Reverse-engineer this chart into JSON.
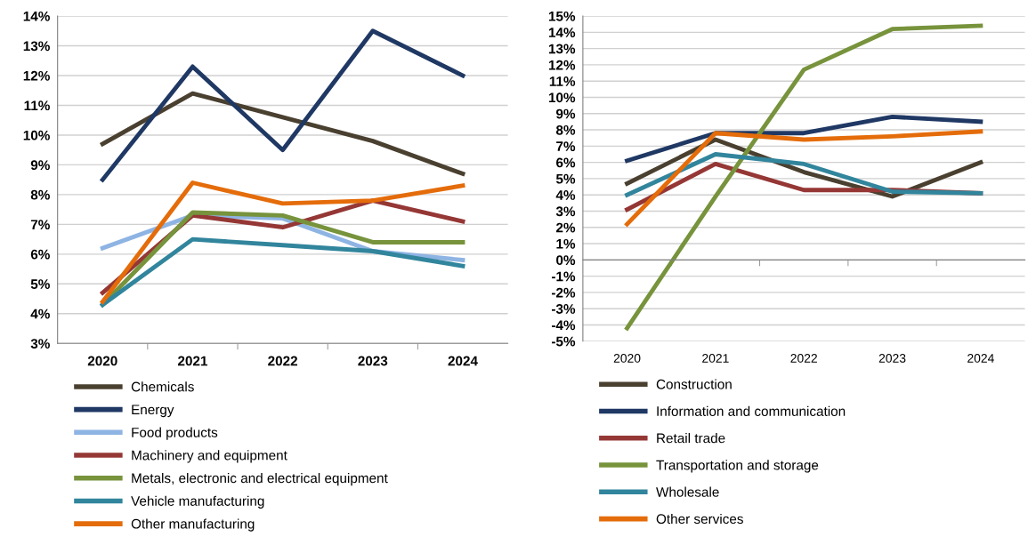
{
  "chart_data": [
    {
      "type": "line",
      "categories": [
        "2020",
        "2021",
        "2022",
        "2023",
        "2024"
      ],
      "ylim": [
        3,
        14
      ],
      "yticks": [
        {
          "value": 3,
          "label": "3%"
        },
        {
          "value": 4,
          "label": "4%"
        },
        {
          "value": 5,
          "label": "5%"
        },
        {
          "value": 6,
          "label": "6%"
        },
        {
          "value": 7,
          "label": "7%"
        },
        {
          "value": 8,
          "label": "8%"
        },
        {
          "value": 9,
          "label": "9%"
        },
        {
          "value": 10,
          "label": "10%"
        },
        {
          "value": 11,
          "label": "11%"
        },
        {
          "value": 12,
          "label": "12%"
        },
        {
          "value": 13,
          "label": "13%"
        },
        {
          "value": 14,
          "label": "14%"
        }
      ],
      "grid": "y",
      "legend": "bottom",
      "series": [
        {
          "name": "Chemicals",
          "color": "#4a4030",
          "values": [
            9.7,
            11.4,
            10.6,
            9.8,
            8.7
          ]
        },
        {
          "name": "Energy",
          "color": "#1f3864",
          "values": [
            8.5,
            12.3,
            9.5,
            13.5,
            12.0
          ]
        },
        {
          "name": "Food products",
          "color": "#8eb4e3",
          "values": [
            6.2,
            7.3,
            7.2,
            6.1,
            5.8
          ]
        },
        {
          "name": "Machinery and equipment",
          "color": "#953735",
          "values": [
            4.7,
            7.3,
            6.9,
            7.8,
            7.1
          ]
        },
        {
          "name": "Metals, electronic and electrical equipment",
          "color": "#77933c",
          "values": [
            4.3,
            7.4,
            7.3,
            6.4,
            6.4
          ]
        },
        {
          "name": "Vehicle manufacturing",
          "color": "#31859c",
          "values": [
            4.3,
            6.5,
            6.3,
            6.1,
            5.6
          ]
        },
        {
          "name": "Other manufacturing",
          "color": "#e46c0a",
          "values": [
            4.4,
            8.4,
            7.7,
            7.8,
            8.3
          ]
        }
      ]
    },
    {
      "type": "line",
      "categories": [
        "2020",
        "2021",
        "2022",
        "2023",
        "2024"
      ],
      "ylim": [
        -5,
        15
      ],
      "yticks": [
        {
          "value": -5,
          "label": "-5%"
        },
        {
          "value": -4,
          "label": "-4%"
        },
        {
          "value": -3,
          "label": "-3%"
        },
        {
          "value": -2,
          "label": "-2%"
        },
        {
          "value": -1,
          "label": "-1%"
        },
        {
          "value": 0,
          "label": "0%"
        },
        {
          "value": 1,
          "label": "1%"
        },
        {
          "value": 2,
          "label": "2%"
        },
        {
          "value": 3,
          "label": "3%"
        },
        {
          "value": 4,
          "label": "4%"
        },
        {
          "value": 5,
          "label": "5%"
        },
        {
          "value": 6,
          "label": "6%"
        },
        {
          "value": 7,
          "label": "7%"
        },
        {
          "value": 8,
          "label": "8%"
        },
        {
          "value": 9,
          "label": "9%"
        },
        {
          "value": 10,
          "label": "10%"
        },
        {
          "value": 11,
          "label": "11%"
        },
        {
          "value": 12,
          "label": "12%"
        },
        {
          "value": 13,
          "label": "13%"
        },
        {
          "value": 14,
          "label": "14%"
        },
        {
          "value": 15,
          "label": "15%"
        }
      ],
      "grid": "y",
      "legend": "bottom",
      "series": [
        {
          "name": "Construction",
          "color": "#4a4030",
          "values": [
            4.7,
            7.4,
            5.4,
            3.9,
            6.0
          ]
        },
        {
          "name": "Information and communication",
          "color": "#1f3864",
          "values": [
            6.1,
            7.8,
            7.8,
            8.8,
            8.5
          ]
        },
        {
          "name": "Retail trade",
          "color": "#953735",
          "values": [
            3.1,
            5.9,
            4.3,
            4.3,
            4.1
          ]
        },
        {
          "name": "Transportation and storage",
          "color": "#77933c",
          "values": [
            -4.2,
            3.9,
            11.7,
            14.2,
            14.4
          ]
        },
        {
          "name": "Wholesale",
          "color": "#31859c",
          "values": [
            4.0,
            6.5,
            5.9,
            4.2,
            4.1
          ]
        },
        {
          "name": "Other services",
          "color": "#e46c0a",
          "values": [
            2.2,
            7.8,
            7.4,
            7.6,
            7.9
          ]
        }
      ]
    }
  ]
}
